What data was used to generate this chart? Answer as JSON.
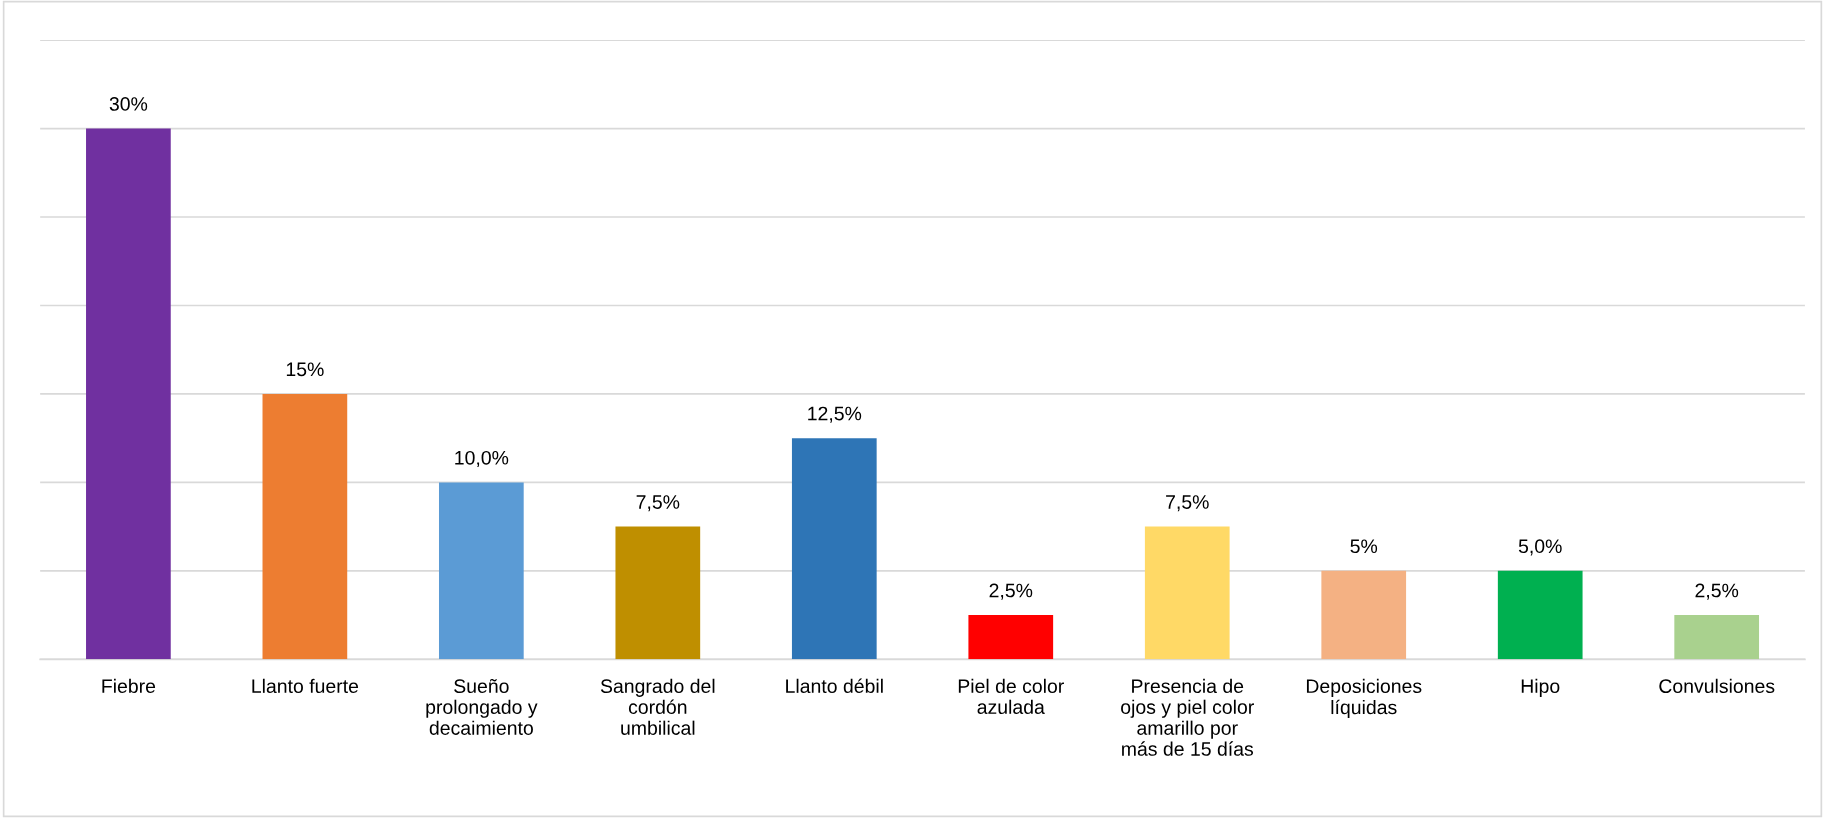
{
  "chart_data": {
    "type": "bar",
    "categories": [
      "Fiebre",
      "Llanto fuerte",
      "Sueño\nprolongado y\ndecaimiento",
      "Sangrado del\ncordón\numbilical",
      "Llanto débil",
      "Piel de color\nazulada",
      "Presencia de\nojos y piel color\namarillo por\nmás de 15 días",
      "Deposiciones\nlíquidas",
      "Hipo",
      "Convulsiones"
    ],
    "values": [
      30,
      15,
      10,
      7.5,
      12.5,
      2.5,
      7.5,
      5,
      5,
      2.5
    ],
    "value_labels": [
      "30%",
      "15%",
      "10,0%",
      "7,5%",
      "12,5%",
      "2,5%",
      "7,5%",
      "5%",
      "5,0%",
      "2,5%"
    ],
    "colors": [
      "#7030a0",
      "#ed7d31",
      "#5b9bd5",
      "#bf8f00",
      "#2e75b6",
      "#ff0000",
      "#ffd966",
      "#f4b183",
      "#00b050",
      "#a9d18e"
    ],
    "ylim": [
      0,
      35
    ],
    "yticks": [
      {
        "value": 0,
        "label": null
      },
      {
        "value": 5,
        "label": null
      },
      {
        "value": 10,
        "label": null
      },
      {
        "value": 15,
        "label": null
      },
      {
        "value": 20,
        "label": null
      },
      {
        "value": 25,
        "label": null
      },
      {
        "value": 30,
        "label": null
      },
      {
        "value": 35,
        "label": null
      }
    ],
    "grid": "y",
    "tick_labels": "x"
  }
}
